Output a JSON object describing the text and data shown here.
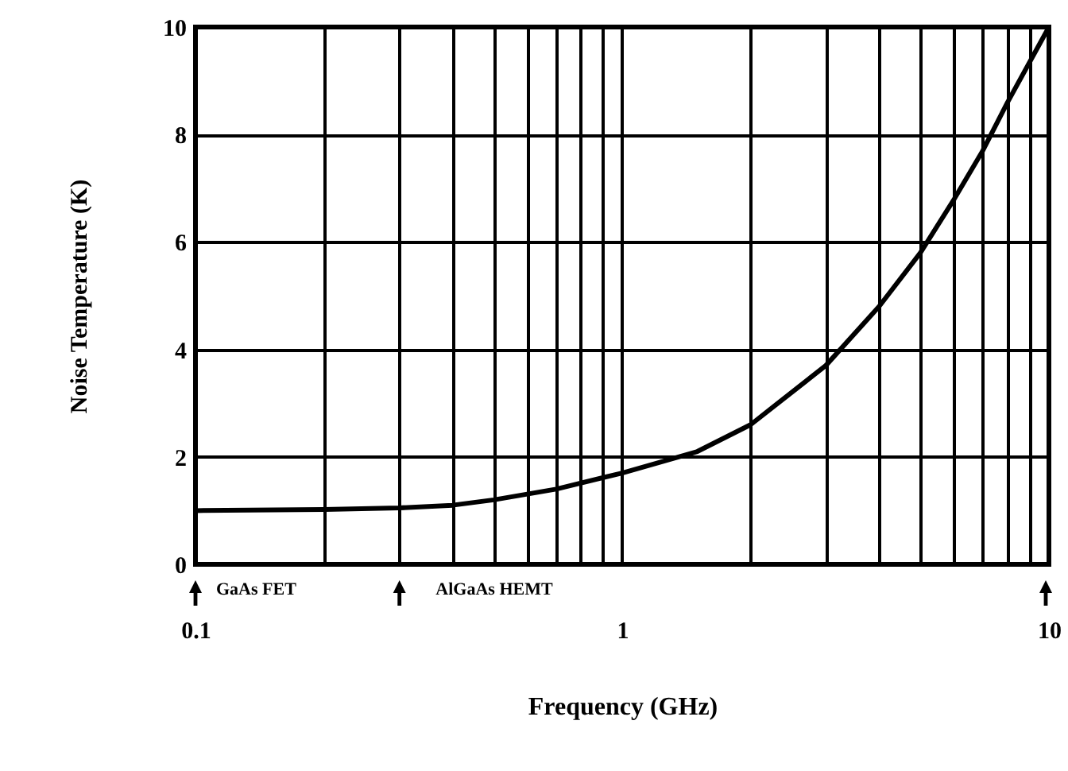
{
  "chart_data": {
    "type": "line",
    "xlabel": "Frequency (GHz)",
    "ylabel": "Noise Temperature (K)",
    "log": "x",
    "x": [
      0.1,
      0.2,
      0.3,
      0.4,
      0.5,
      0.7,
      1,
      1.5,
      2,
      3,
      4,
      5,
      6,
      7,
      8,
      10
    ],
    "series": [
      {
        "color": "#000000",
        "values": [
          1.0,
          1.02,
          1.05,
          1.1,
          1.2,
          1.4,
          1.7,
          2.1,
          2.6,
          3.7,
          4.8,
          5.8,
          6.8,
          7.7,
          8.6,
          10.0
        ]
      }
    ],
    "xlim": [
      0.1,
      10
    ],
    "ylim": [
      0,
      10
    ],
    "xticks": [
      0.1,
      {
        "value": 0.2,
        "label": null
      },
      {
        "value": 0.3,
        "label": null
      },
      {
        "value": 0.4,
        "label": null
      },
      {
        "value": 0.5,
        "label": null
      },
      {
        "value": 0.6,
        "label": null
      },
      {
        "value": 0.7,
        "label": null
      },
      {
        "value": 0.8,
        "label": null
      },
      {
        "value": 0.9,
        "label": null
      },
      1,
      {
        "value": 2,
        "label": null
      },
      {
        "value": 3,
        "label": null
      },
      {
        "value": 4,
        "label": null
      },
      {
        "value": 5,
        "label": null
      },
      {
        "value": 6,
        "label": null
      },
      {
        "value": 7,
        "label": null
      },
      {
        "value": 8,
        "label": null
      },
      {
        "value": 9,
        "label": null
      },
      10
    ],
    "yticks": [
      0,
      2,
      4,
      6,
      8,
      10
    ],
    "grid": true,
    "line_style": "solid",
    "annotations": [
      "GaAs FET",
      "AlGaAs HEMT"
    ]
  }
}
